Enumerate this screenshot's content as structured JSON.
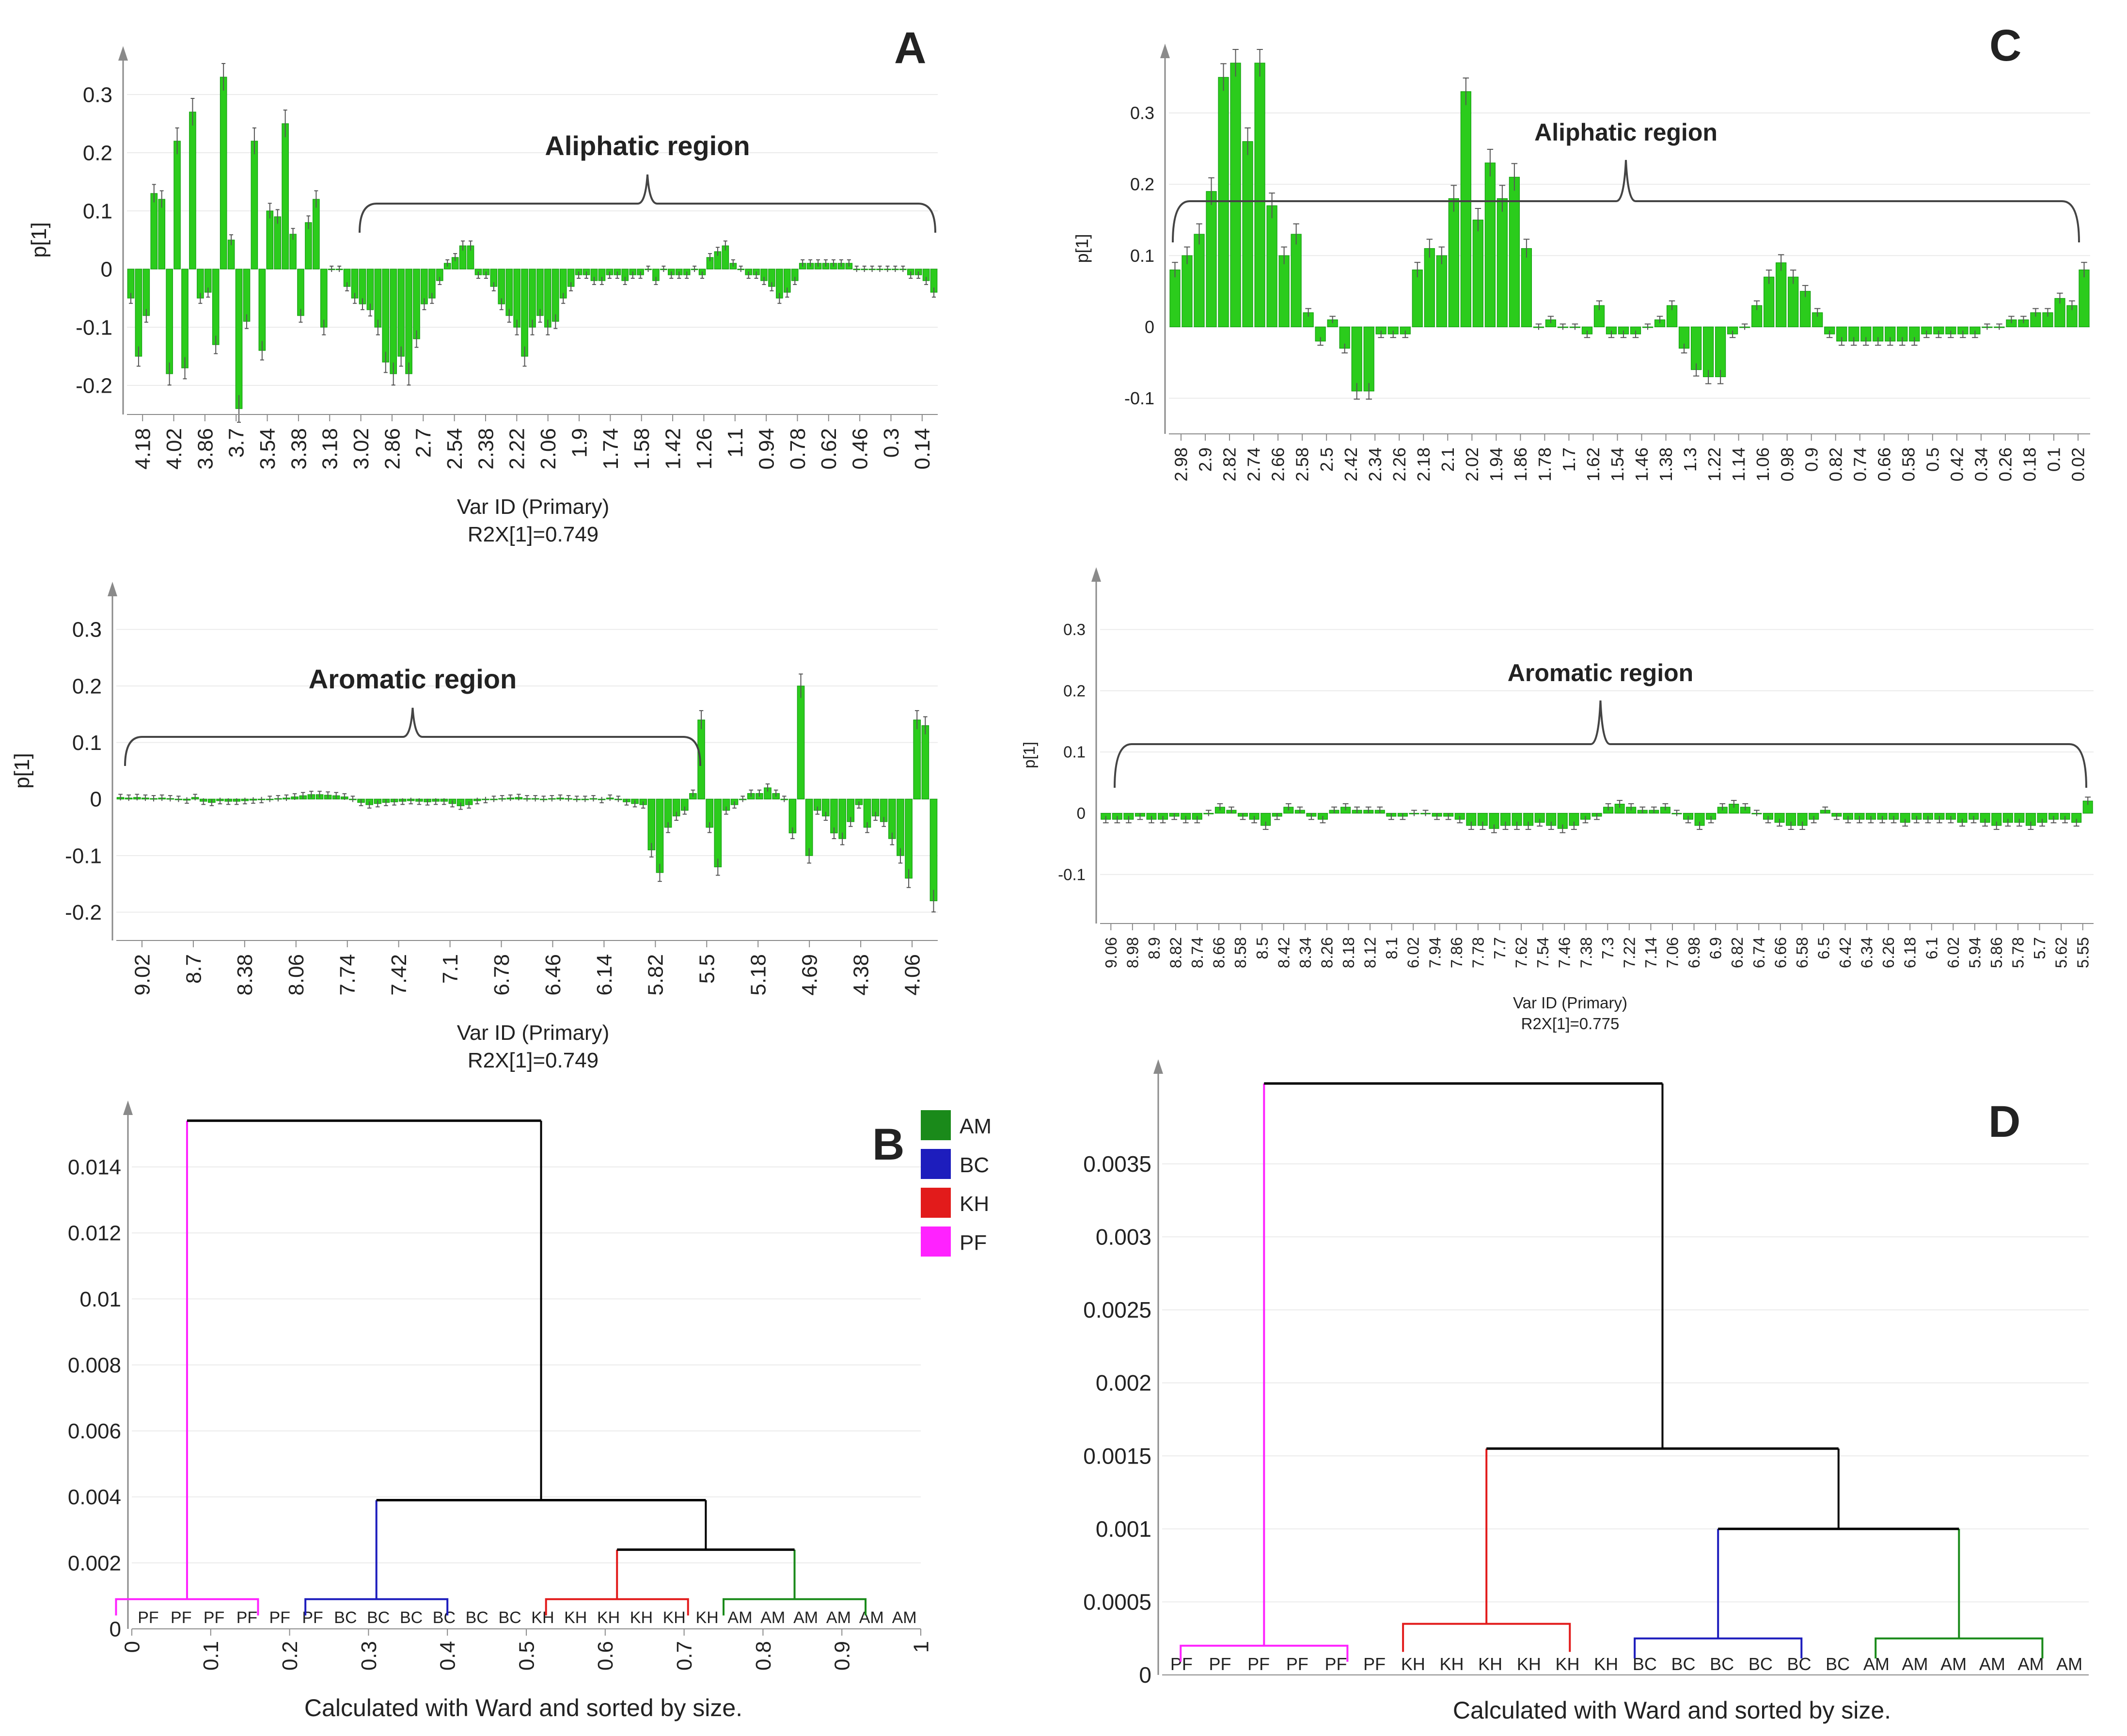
{
  "figure": {
    "panel_letters": [
      "A",
      "C",
      "B",
      "D"
    ]
  },
  "colors": {
    "bar": "#2bcc1c",
    "bar_edge": "#119a0d",
    "axis": "#8a8a8a",
    "grid": "#ebebeb",
    "pf": "#ff22ff",
    "bc": "#1d1dbd",
    "kh": "#e21b1b",
    "am": "#1a8a1a",
    "link": "#000000"
  },
  "chart_data": [
    {
      "id": "A-top",
      "type": "bar",
      "panel": "A",
      "ylabel": "p[1]",
      "xlabel": "Var ID (Primary)",
      "footnote": "R2X[1]=0.749",
      "region_label": "Aliphatic region",
      "yticks": [
        "0.3",
        "0.2",
        "0.1",
        "0",
        "-0.1",
        "-0.2"
      ],
      "ylim": [
        -0.25,
        0.35
      ],
      "xticks": [
        "4.18",
        "4.02",
        "3.86",
        "3.7",
        "3.54",
        "3.38",
        "3.18",
        "3.02",
        "2.86",
        "2.7",
        "2.54",
        "2.38",
        "2.22",
        "2.06",
        "1.9",
        "1.74",
        "1.58",
        "1.42",
        "1.26",
        "1.1",
        "0.94",
        "0.78",
        "0.62",
        "0.46",
        "0.3",
        "0.14"
      ],
      "values": [
        -0.05,
        -0.15,
        -0.08,
        0.13,
        0.12,
        -0.18,
        0.22,
        -0.17,
        0.27,
        -0.05,
        -0.04,
        -0.13,
        0.33,
        0.05,
        -0.24,
        -0.09,
        0.22,
        -0.14,
        0.1,
        0.09,
        0.25,
        0.06,
        -0.08,
        0.08,
        0.12,
        -0.1,
        0.0,
        0.0,
        -0.03,
        -0.05,
        -0.06,
        -0.07,
        -0.1,
        -0.16,
        -0.18,
        -0.15,
        -0.18,
        -0.12,
        -0.06,
        -0.05,
        -0.02,
        0.01,
        0.02,
        0.04,
        0.04,
        -0.01,
        -0.01,
        -0.03,
        -0.06,
        -0.08,
        -0.1,
        -0.15,
        -0.1,
        -0.08,
        -0.1,
        -0.09,
        -0.05,
        -0.03,
        -0.01,
        -0.01,
        -0.02,
        -0.02,
        -0.01,
        -0.01,
        -0.02,
        -0.01,
        -0.01,
        0.0,
        -0.02,
        0.0,
        -0.01,
        -0.01,
        -0.01,
        0.0,
        -0.01,
        0.02,
        0.03,
        0.04,
        0.01,
        0.0,
        -0.01,
        -0.01,
        -0.02,
        -0.03,
        -0.05,
        -0.04,
        -0.02,
        0.01,
        0.01,
        0.01,
        0.01,
        0.01,
        0.01,
        0.01,
        0.0,
        0.0,
        0.0,
        0.0,
        0.0,
        0.0,
        0.0,
        -0.01,
        -0.01,
        -0.02,
        -0.04
      ]
    },
    {
      "id": "A-bottom",
      "type": "bar",
      "panel": "A",
      "ylabel": "p[1]",
      "xlabel": "Var ID (Primary)",
      "footnote": "R2X[1]=0.749",
      "region_label": "Aromatic region",
      "yticks": [
        "0.3",
        "0.2",
        "0.1",
        "0",
        "-0.1",
        "-0.2"
      ],
      "ylim": [
        -0.25,
        0.35
      ],
      "xticks": [
        "9.02",
        "8.7",
        "8.38",
        "8.06",
        "7.74",
        "7.42",
        "7.1",
        "6.78",
        "6.46",
        "6.14",
        "5.82",
        "5.5",
        "5.18",
        "4.69",
        "4.38",
        "4.06"
      ],
      "values": [
        0.003,
        0.002,
        0.003,
        0.002,
        0.001,
        0.002,
        0.001,
        0.0,
        -0.002,
        0.003,
        -0.004,
        -0.006,
        -0.003,
        -0.004,
        -0.004,
        -0.003,
        -0.002,
        -0.001,
        0.0,
        0.001,
        0.002,
        0.004,
        0.006,
        0.008,
        0.008,
        0.007,
        0.006,
        0.004,
        0.0,
        -0.006,
        -0.01,
        -0.008,
        -0.006,
        -0.005,
        -0.004,
        -0.003,
        -0.004,
        -0.005,
        -0.004,
        -0.004,
        -0.008,
        -0.012,
        -0.01,
        -0.003,
        -0.001,
        0.0,
        0.001,
        0.002,
        0.003,
        0.001,
        0.001,
        0.0,
        0.001,
        0.002,
        0.001,
        0.0,
        0.0,
        0.001,
        -0.001,
        0.002,
        0.0,
        -0.005,
        -0.008,
        -0.01,
        -0.09,
        -0.13,
        -0.05,
        -0.03,
        -0.02,
        0.01,
        0.14,
        -0.05,
        -0.12,
        -0.02,
        -0.01,
        0.0,
        0.01,
        0.01,
        0.02,
        0.01,
        0.0,
        -0.06,
        0.2,
        -0.1,
        -0.02,
        -0.03,
        -0.06,
        -0.07,
        -0.04,
        -0.01,
        -0.05,
        -0.03,
        -0.04,
        -0.07,
        -0.1,
        -0.14,
        0.14,
        0.13,
        -0.18
      ]
    },
    {
      "id": "C-top",
      "type": "bar",
      "panel": "C",
      "ylabel": "p[1]",
      "region_label": "Aliphatic region",
      "yticks": [
        "0.3",
        "0.2",
        "0.1",
        "0",
        "-0.1"
      ],
      "ylim": [
        -0.15,
        0.37
      ],
      "xticks": [
        "2.98",
        "2.9",
        "2.82",
        "2.74",
        "2.66",
        "2.58",
        "2.5",
        "2.42",
        "2.34",
        "2.26",
        "2.18",
        "2.1",
        "2.02",
        "1.94",
        "1.86",
        "1.78",
        "1.7",
        "1.62",
        "1.54",
        "1.46",
        "1.38",
        "1.3",
        "1.22",
        "1.14",
        "1.06",
        "0.98",
        "0.9",
        "0.82",
        "0.74",
        "0.66",
        "0.58",
        "0.5",
        "0.42",
        "0.34",
        "0.26",
        "0.18",
        "0.1",
        "0.02"
      ],
      "values": [
        0.08,
        0.1,
        0.13,
        0.19,
        0.35,
        0.37,
        0.26,
        0.37,
        0.17,
        0.1,
        0.13,
        0.02,
        -0.02,
        0.01,
        -0.03,
        -0.09,
        -0.09,
        -0.01,
        -0.01,
        -0.01,
        0.08,
        0.11,
        0.1,
        0.18,
        0.33,
        0.15,
        0.23,
        0.18,
        0.21,
        0.11,
        0.0,
        0.01,
        0.0,
        0.0,
        -0.01,
        0.03,
        -0.01,
        -0.01,
        -0.01,
        0.0,
        0.01,
        0.03,
        -0.03,
        -0.06,
        -0.07,
        -0.07,
        -0.01,
        0.0,
        0.03,
        0.07,
        0.09,
        0.07,
        0.05,
        0.02,
        -0.01,
        -0.02,
        -0.02,
        -0.02,
        -0.02,
        -0.02,
        -0.02,
        -0.02,
        -0.01,
        -0.01,
        -0.01,
        -0.01,
        -0.01,
        0.0,
        0.0,
        0.01,
        0.01,
        0.02,
        0.02,
        0.04,
        0.03,
        0.08
      ]
    },
    {
      "id": "C-bottom",
      "type": "bar",
      "panel": "C",
      "ylabel": "p[1]",
      "xlabel": "Var ID (Primary)",
      "footnote": "R2X[1]=0.775",
      "region_label": "Aromatic region",
      "yticks": [
        "0.3",
        "0.2",
        "0.1",
        "0",
        "-0.1"
      ],
      "ylim": [
        -0.18,
        0.37
      ],
      "xticks": [
        "9.06",
        "8.98",
        "8.9",
        "8.82",
        "8.74",
        "8.66",
        "8.58",
        "8.5",
        "8.42",
        "8.34",
        "8.26",
        "8.18",
        "8.12",
        "8.1",
        "6.02",
        "7.94",
        "7.86",
        "7.78",
        "7.7",
        "7.62",
        "7.54",
        "7.46",
        "7.38",
        "7.3",
        "7.22",
        "7.14",
        "7.06",
        "6.98",
        "6.9",
        "6.82",
        "6.74",
        "6.66",
        "6.58",
        "6.5",
        "6.42",
        "6.34",
        "6.26",
        "6.18",
        "6.1",
        "6.02",
        "5.94",
        "5.86",
        "5.78",
        "5.7",
        "5.62",
        "5.55"
      ],
      "values": [
        -0.01,
        -0.01,
        -0.01,
        -0.005,
        -0.01,
        -0.01,
        -0.005,
        -0.01,
        -0.01,
        0.0,
        0.01,
        0.005,
        -0.005,
        -0.01,
        -0.02,
        -0.005,
        0.01,
        0.005,
        -0.005,
        -0.01,
        0.005,
        0.01,
        0.005,
        0.005,
        0.005,
        -0.005,
        -0.005,
        0.0,
        0.0,
        -0.005,
        -0.005,
        -0.01,
        -0.02,
        -0.02,
        -0.025,
        -0.02,
        -0.02,
        -0.02,
        -0.015,
        -0.02,
        -0.025,
        -0.02,
        -0.01,
        -0.005,
        0.01,
        0.015,
        0.01,
        0.005,
        0.005,
        0.01,
        0.0,
        -0.01,
        -0.02,
        -0.01,
        0.01,
        0.015,
        0.01,
        0.0,
        -0.01,
        -0.015,
        -0.02,
        -0.02,
        -0.01,
        0.005,
        -0.005,
        -0.01,
        -0.01,
        -0.01,
        -0.01,
        -0.01,
        -0.015,
        -0.01,
        -0.01,
        -0.01,
        -0.01,
        -0.015,
        -0.01,
        -0.015,
        -0.02,
        -0.015,
        -0.015,
        -0.02,
        -0.015,
        -0.01,
        -0.01,
        -0.015,
        0.02
      ]
    },
    {
      "id": "B",
      "type": "dendrogram",
      "panel": "B",
      "xlabel": "Calculated with Ward and sorted by size.",
      "yticks": [
        "0.014",
        "0.012",
        "0.01",
        "0.008",
        "0.006",
        "0.004",
        "0.002",
        "0"
      ],
      "ylim": [
        0,
        0.0155
      ],
      "xticks": [
        "0",
        "0.1",
        "0.2",
        "0.3",
        "0.4",
        "0.5",
        "0.6",
        "0.7",
        "0.8",
        "0.9",
        "1"
      ],
      "legend": [
        "AM",
        "BC",
        "KH",
        "PF"
      ],
      "leaves": [
        "PF",
        "PF",
        "PF",
        "PF",
        "PF",
        "PF",
        "BC",
        "BC",
        "BC",
        "BC",
        "BC",
        "BC",
        "KH",
        "KH",
        "KH",
        "KH",
        "KH",
        "KH",
        "AM",
        "AM",
        "AM",
        "AM",
        "AM",
        "AM"
      ],
      "groups": [
        {
          "name": "PF",
          "height": 0.0009,
          "center": 0.07
        },
        {
          "name": "BC",
          "height": 0.0009,
          "center": 0.31
        },
        {
          "name": "KH",
          "height": 0.0009,
          "center": 0.615
        },
        {
          "name": "AM",
          "height": 0.0009,
          "center": 0.84
        }
      ],
      "merges": [
        {
          "left": "KH",
          "right": "AM",
          "height": 0.0024
        },
        {
          "left": "BC",
          "right": "KH+AM",
          "height": 0.0039
        },
        {
          "left": "PF",
          "right": "BC+KH+AM",
          "height": 0.0154
        }
      ]
    },
    {
      "id": "D",
      "type": "dendrogram",
      "panel": "D",
      "xlabel": "Calculated with Ward and sorted by size.",
      "yticks": [
        "0.0035",
        "0.003",
        "0.0025",
        "0.002",
        "0.0015",
        "0.001",
        "0.0005",
        "0"
      ],
      "ylim": [
        0,
        0.0041
      ],
      "leaves": [
        "PF",
        "PF",
        "PF",
        "PF",
        "PF",
        "PF",
        "KH",
        "KH",
        "KH",
        "KH",
        "KH",
        "KH",
        "BC",
        "BC",
        "BC",
        "BC",
        "BC",
        "BC",
        "AM",
        "AM",
        "AM",
        "AM",
        "AM",
        "AM"
      ],
      "groups": [
        {
          "name": "PF",
          "height": 0.0002,
          "center": 0.11
        },
        {
          "name": "KH",
          "height": 0.00035,
          "center": 0.35
        },
        {
          "name": "BC",
          "height": 0.00025,
          "center": 0.6
        },
        {
          "name": "AM",
          "height": 0.00025,
          "center": 0.86
        }
      ],
      "merges": [
        {
          "left": "BC",
          "right": "AM",
          "height": 0.001
        },
        {
          "left": "KH",
          "right": "BC+AM",
          "height": 0.00155
        },
        {
          "left": "PF",
          "right": "KH+BC+AM",
          "height": 0.00405
        }
      ]
    }
  ]
}
